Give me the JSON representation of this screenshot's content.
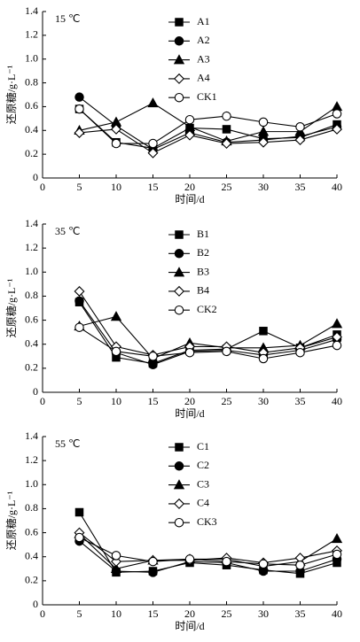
{
  "chart_data": [
    {
      "type": "line",
      "title": "15 ℃",
      "xlabel": "时间/d",
      "ylabel": "还原糖/g·L⁻¹",
      "x": [
        5,
        10,
        15,
        20,
        25,
        30,
        35,
        40
      ],
      "xlim": [
        0,
        40
      ],
      "xticks": [
        0,
        5,
        10,
        15,
        20,
        25,
        30,
        35,
        40
      ],
      "ylim": [
        0,
        1.4
      ],
      "yticks": [
        0,
        0.2,
        0.4,
        0.6,
        0.8,
        {
          "value": 1,
          "label": "1.0"
        },
        1.2,
        1.4
      ],
      "legend": "upper center",
      "series": [
        {
          "name": "A1",
          "color": "#000000",
          "marker": "square",
          "values": [
            0.58,
            0.3,
            0.25,
            0.42,
            0.41,
            0.33,
            0.34,
            0.45
          ]
        },
        {
          "name": "A2",
          "color": "#000000",
          "marker": "circle",
          "values": [
            0.68,
            0.44,
            0.24,
            0.38,
            0.3,
            0.32,
            0.35,
            0.43
          ]
        },
        {
          "name": "A3",
          "color": "#000000",
          "marker": "triangle",
          "values": [
            0.4,
            0.47,
            0.63,
            0.43,
            0.31,
            0.39,
            0.39,
            0.6
          ]
        },
        {
          "name": "A4",
          "color": "#000000",
          "marker": "diamond-open",
          "values": [
            0.38,
            0.41,
            0.21,
            0.36,
            0.29,
            0.3,
            0.32,
            0.41
          ]
        },
        {
          "name": "CK1",
          "color": "#000000",
          "marker": "circle-open",
          "values": [
            0.58,
            0.29,
            0.29,
            0.49,
            0.52,
            0.47,
            0.43,
            0.54
          ]
        }
      ]
    },
    {
      "type": "line",
      "title": "35 ℃",
      "xlabel": "时间/d",
      "ylabel": "还原糖/g·L⁻¹",
      "x": [
        5,
        10,
        15,
        20,
        25,
        30,
        35,
        40
      ],
      "xlim": [
        0,
        40
      ],
      "xticks": [
        0,
        5,
        10,
        15,
        20,
        25,
        30,
        35,
        40
      ],
      "ylim": [
        0,
        1.4
      ],
      "yticks": [
        0,
        0.2,
        0.4,
        0.6,
        0.8,
        {
          "value": 1,
          "label": "1.0"
        },
        1.2,
        1.4
      ],
      "legend": "upper center",
      "series": [
        {
          "name": "B1",
          "color": "#000000",
          "marker": "square",
          "values": [
            0.75,
            0.29,
            0.24,
            0.35,
            0.36,
            0.51,
            0.37,
            0.48
          ]
        },
        {
          "name": "B2",
          "color": "#000000",
          "marker": "circle",
          "values": [
            0.76,
            0.33,
            0.23,
            0.34,
            0.35,
            0.31,
            0.35,
            0.44
          ]
        },
        {
          "name": "B3",
          "color": "#000000",
          "marker": "triangle",
          "values": [
            0.55,
            0.63,
            0.28,
            0.41,
            0.37,
            0.37,
            0.39,
            0.57
          ]
        },
        {
          "name": "B4",
          "color": "#000000",
          "marker": "diamond-open",
          "values": [
            0.84,
            0.38,
            0.31,
            0.38,
            0.38,
            0.33,
            0.37,
            0.46
          ]
        },
        {
          "name": "CK2",
          "color": "#000000",
          "marker": "circle-open",
          "values": [
            0.54,
            0.34,
            0.3,
            0.33,
            0.34,
            0.28,
            0.33,
            0.39
          ]
        }
      ]
    },
    {
      "type": "line",
      "title": "55 ℃",
      "xlabel": "时间/d",
      "ylabel": "还原糖/g·L⁻¹",
      "x": [
        5,
        10,
        15,
        20,
        25,
        30,
        35,
        40
      ],
      "xlim": [
        0,
        40
      ],
      "xticks": [
        0,
        5,
        10,
        15,
        20,
        25,
        30,
        35,
        40
      ],
      "ylim": [
        0,
        1.4
      ],
      "yticks": [
        0,
        0.2,
        0.4,
        0.6,
        0.8,
        {
          "value": 1,
          "label": "1.0"
        },
        1.2,
        1.4
      ],
      "legend": "upper center",
      "series": [
        {
          "name": "C1",
          "color": "#000000",
          "marker": "square",
          "values": [
            0.77,
            0.27,
            0.28,
            0.35,
            0.33,
            0.29,
            0.26,
            0.35
          ]
        },
        {
          "name": "C2",
          "color": "#000000",
          "marker": "circle",
          "values": [
            0.53,
            0.28,
            0.27,
            0.36,
            0.35,
            0.28,
            0.28,
            0.38
          ]
        },
        {
          "name": "C3",
          "color": "#000000",
          "marker": "triangle",
          "values": [
            0.59,
            0.3,
            0.37,
            0.38,
            0.38,
            0.32,
            0.36,
            0.55
          ]
        },
        {
          "name": "C4",
          "color": "#000000",
          "marker": "diamond-open",
          "values": [
            0.6,
            0.36,
            0.37,
            0.37,
            0.39,
            0.35,
            0.39,
            0.45
          ]
        },
        {
          "name": "CK3",
          "color": "#000000",
          "marker": "circle-open",
          "values": [
            0.56,
            0.41,
            0.36,
            0.38,
            0.36,
            0.34,
            0.33,
            0.42
          ]
        }
      ]
    }
  ]
}
